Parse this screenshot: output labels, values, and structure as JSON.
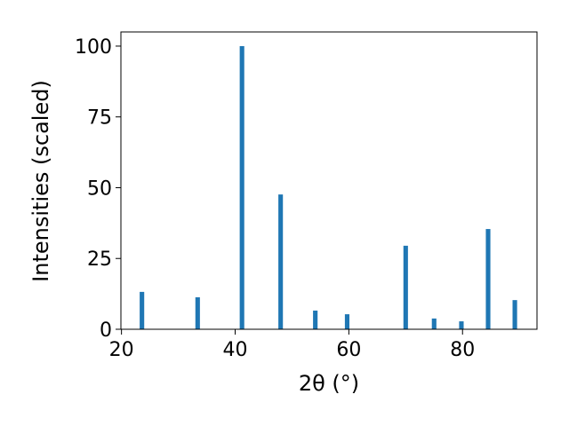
{
  "chart_data": {
    "type": "bar",
    "xlabel": "2θ (°)",
    "ylabel": "Intensities (scaled)",
    "x": [
      23.6,
      33.4,
      41.2,
      48.0,
      54.1,
      59.7,
      70.0,
      75.0,
      79.8,
      84.5,
      89.2
    ],
    "values": [
      13.2,
      11.3,
      100,
      47.6,
      6.6,
      5.3,
      29.5,
      3.8,
      2.8,
      35.4,
      10.3
    ],
    "color": "#1f77b4",
    "xlim": [
      19.9,
      93.1
    ],
    "xticks": [
      20,
      40,
      60,
      80
    ],
    "ylim": [
      0,
      105
    ],
    "yticks": [
      0,
      25,
      50,
      75,
      100
    ]
  }
}
